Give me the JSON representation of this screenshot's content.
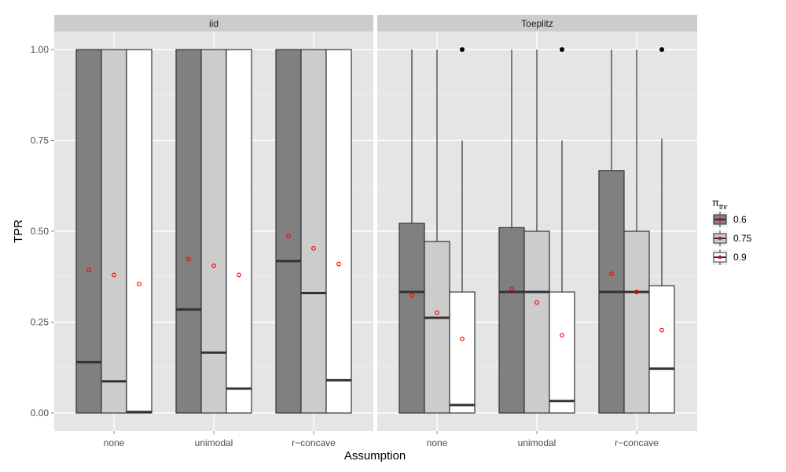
{
  "chart_data": {
    "type": "boxplot",
    "xlabel": "Assumption",
    "ylabel": "TPR",
    "ylim": [
      0,
      1
    ],
    "y_ticks": [
      "0.00",
      "0.25",
      "0.50",
      "0.75",
      "1.00"
    ],
    "y_tick_values": [
      0,
      0.25,
      0.5,
      0.75,
      1.0
    ],
    "categories": [
      "none",
      "unimodal",
      "r−concave"
    ],
    "legend": {
      "title": "π",
      "title_sub": "thr",
      "entries": [
        {
          "label": "0.6",
          "color": "#808080"
        },
        {
          "label": "0.75",
          "color": "#cccccc"
        },
        {
          "label": "0.9",
          "color": "#ffffff"
        }
      ]
    },
    "colors": {
      "panel_bg": "#e5e5e5",
      "strip_bg": "#cccccc",
      "grid": "#ffffff",
      "box_stroke": "#333333",
      "mean_marker": "#ff0000",
      "outlier": "#000000"
    },
    "panels": [
      {
        "label": "iid",
        "groups": [
          {
            "category": "none",
            "boxes": [
              {
                "series": "0.6",
                "lower": 0,
                "q1": 0,
                "median": 0.14,
                "q3": 1.0,
                "upper": 1.0,
                "mean": 0.393,
                "outliers": []
              },
              {
                "series": "0.75",
                "lower": 0,
                "q1": 0,
                "median": 0.087,
                "q3": 1.0,
                "upper": 1.0,
                "mean": 0.38,
                "outliers": []
              },
              {
                "series": "0.9",
                "lower": 0,
                "q1": 0,
                "median": 0.003,
                "q3": 1.0,
                "upper": 1.0,
                "mean": 0.355,
                "outliers": []
              }
            ]
          },
          {
            "category": "unimodal",
            "boxes": [
              {
                "series": "0.6",
                "lower": 0,
                "q1": 0,
                "median": 0.285,
                "q3": 1.0,
                "upper": 1.0,
                "mean": 0.423,
                "outliers": []
              },
              {
                "series": "0.75",
                "lower": 0,
                "q1": 0,
                "median": 0.166,
                "q3": 1.0,
                "upper": 1.0,
                "mean": 0.405,
                "outliers": []
              },
              {
                "series": "0.9",
                "lower": 0,
                "q1": 0,
                "median": 0.067,
                "q3": 1.0,
                "upper": 1.0,
                "mean": 0.38,
                "outliers": []
              }
            ]
          },
          {
            "category": "r−concave",
            "boxes": [
              {
                "series": "0.6",
                "lower": 0,
                "q1": 0,
                "median": 0.418,
                "q3": 1.0,
                "upper": 1.0,
                "mean": 0.487,
                "outliers": []
              },
              {
                "series": "0.75",
                "lower": 0,
                "q1": 0,
                "median": 0.33,
                "q3": 1.0,
                "upper": 1.0,
                "mean": 0.453,
                "outliers": []
              },
              {
                "series": "0.9",
                "lower": 0,
                "q1": 0,
                "median": 0.09,
                "q3": 1.0,
                "upper": 1.0,
                "mean": 0.41,
                "outliers": []
              }
            ]
          }
        ]
      },
      {
        "label": "Toeplitz",
        "groups": [
          {
            "category": "none",
            "boxes": [
              {
                "series": "0.6",
                "lower": 0,
                "q1": 0,
                "median": 0.333,
                "q3": 0.522,
                "upper": 1.0,
                "mean": 0.323,
                "outliers": []
              },
              {
                "series": "0.75",
                "lower": 0,
                "q1": 0,
                "median": 0.262,
                "q3": 0.472,
                "upper": 1.0,
                "mean": 0.276,
                "outliers": []
              },
              {
                "series": "0.9",
                "lower": 0,
                "q1": 0,
                "median": 0.022,
                "q3": 0.333,
                "upper": 0.75,
                "mean": 0.204,
                "outliers": [
                  1.0
                ]
              }
            ]
          },
          {
            "category": "unimodal",
            "boxes": [
              {
                "series": "0.6",
                "lower": 0,
                "q1": 0,
                "median": 0.333,
                "q3": 0.51,
                "upper": 1.0,
                "mean": 0.342,
                "outliers": []
              },
              {
                "series": "0.75",
                "lower": 0,
                "q1": 0,
                "median": 0.333,
                "q3": 0.5,
                "upper": 1.0,
                "mean": 0.304,
                "outliers": []
              },
              {
                "series": "0.9",
                "lower": 0,
                "q1": 0,
                "median": 0.033,
                "q3": 0.333,
                "upper": 0.75,
                "mean": 0.214,
                "outliers": [
                  1.0
                ]
              }
            ]
          },
          {
            "category": "r−concave",
            "boxes": [
              {
                "series": "0.6",
                "lower": 0,
                "q1": 0,
                "median": 0.333,
                "q3": 0.667,
                "upper": 1.0,
                "mean": 0.383,
                "outliers": []
              },
              {
                "series": "0.75",
                "lower": 0,
                "q1": 0,
                "median": 0.333,
                "q3": 0.5,
                "upper": 1.0,
                "mean": 0.333,
                "outliers": []
              },
              {
                "series": "0.9",
                "lower": 0,
                "q1": 0,
                "median": 0.122,
                "q3": 0.35,
                "upper": 0.755,
                "mean": 0.228,
                "outliers": [
                  1.0
                ]
              }
            ]
          }
        ]
      }
    ]
  }
}
